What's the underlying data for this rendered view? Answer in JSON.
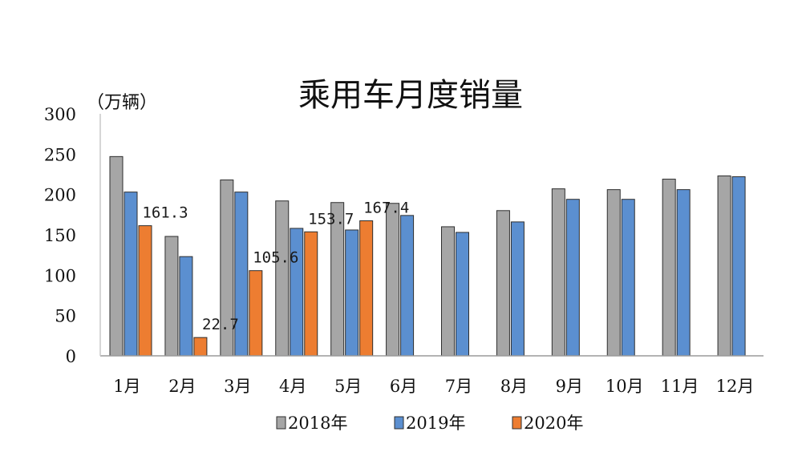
{
  "chart_data": {
    "type": "bar",
    "title": "乘用车月度销量",
    "unit_label": "（万辆）",
    "categories": [
      "1月",
      "2月",
      "3月",
      "4月",
      "5月",
      "6月",
      "7月",
      "8月",
      "9月",
      "10月",
      "11月",
      "12月"
    ],
    "series": [
      {
        "name": "2018年",
        "color": "#a6a6a6",
        "values": [
          247,
          148,
          218,
          192,
          190,
          189,
          160,
          180,
          207,
          206,
          219,
          223
        ]
      },
      {
        "name": "2019年",
        "color": "#5b8fd0",
        "values": [
          203,
          123,
          203,
          158,
          156,
          174,
          153,
          166,
          194,
          194,
          206,
          222
        ]
      },
      {
        "name": "2020年",
        "color": "#ed7d31",
        "values": [
          161.3,
          22.7,
          105.6,
          153.7,
          167.4,
          null,
          null,
          null,
          null,
          null,
          null,
          null
        ]
      }
    ],
    "data_labels": [
      {
        "category": "1月",
        "series": "2020年",
        "text": "161.3"
      },
      {
        "category": "2月",
        "series": "2020年",
        "text": "22.7"
      },
      {
        "category": "3月",
        "series": "2020年",
        "text": "105.6"
      },
      {
        "category": "4月",
        "series": "2020年",
        "text": "153.7"
      },
      {
        "category": "5月",
        "series": "2020年",
        "text": "167.4"
      }
    ],
    "yticks": [
      "300",
      "250",
      "200",
      "150",
      "100",
      "50",
      "0"
    ],
    "ylim": [
      0,
      300
    ],
    "grid": false,
    "legend_position": "bottom"
  }
}
